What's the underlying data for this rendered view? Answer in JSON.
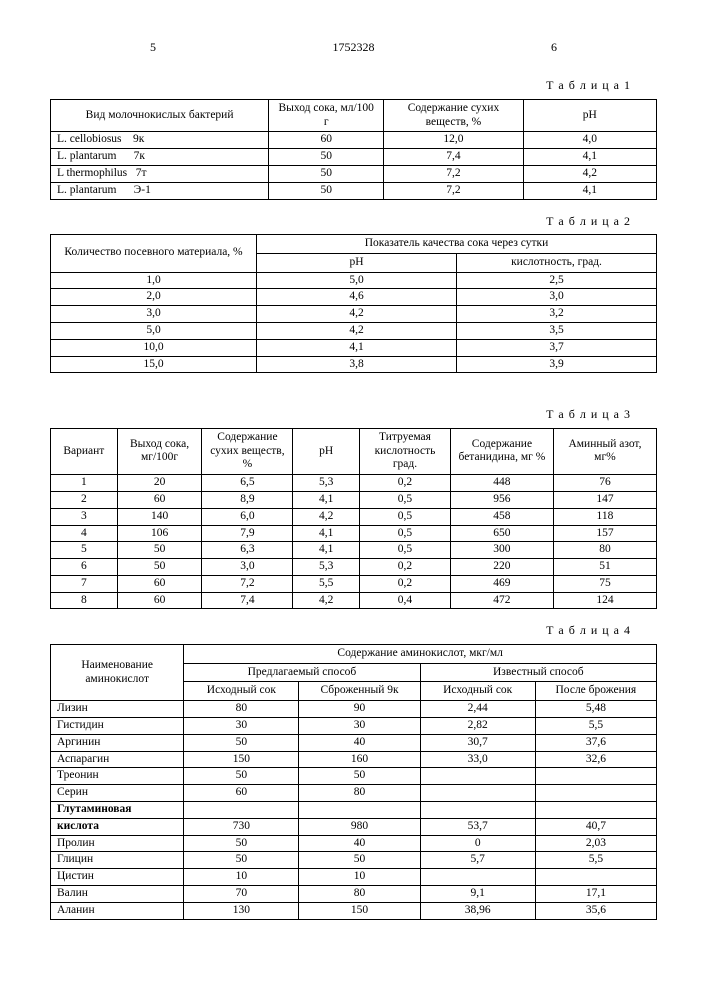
{
  "top": {
    "l": "5",
    "c": "1752328",
    "r": "6"
  },
  "t1": {
    "caption": "Т а б л и ц а 1",
    "headers": [
      "Вид молочнокислых бактерий",
      "Выход сока, мл/100 г",
      "Содержание сухих веществ, %",
      "pH"
    ],
    "rows": [
      [
        "L. cellobiosus    9к",
        "60",
        "12,0",
        "4,0"
      ],
      [
        "L. plantarum      7к",
        "50",
        "7,4",
        "4,1"
      ],
      [
        "L thermophilus   7т",
        "50",
        "7,2",
        "4,2"
      ],
      [
        "L. plantarum      Э-1",
        "50",
        "7,2",
        "4,1"
      ]
    ]
  },
  "t2": {
    "caption": "Т а б л и ц а 2",
    "h1": "Количество посевного мате­риала, %",
    "h2": "Показатель качества сока через сутки",
    "h2a": "pH",
    "h2b": "кислотность, град.",
    "rows": [
      [
        "1,0",
        "5,0",
        "2,5"
      ],
      [
        "2,0",
        "4,6",
        "3,0"
      ],
      [
        "3,0",
        "4,2",
        "3,2"
      ],
      [
        "5,0",
        "4,2",
        "3,5"
      ],
      [
        "10,0",
        "4,1",
        "3,7"
      ],
      [
        "15,0",
        "3,8",
        "3,9"
      ]
    ]
  },
  "t3": {
    "caption": "Т а б л и ц а 3",
    "headers": [
      "Вариант",
      "Выход со­ка, мг/100г",
      "Содержа­ние сухих веществ, %",
      "pH",
      "Титруемая кислот­ность град.",
      "Содержа­ние бетани­дина, мг %",
      "Аминный азот, мг%"
    ],
    "rows": [
      [
        "1",
        "20",
        "6,5",
        "5,3",
        "0,2",
        "448",
        "76"
      ],
      [
        "2",
        "60",
        "8,9",
        "4,1",
        "0,5",
        "956",
        "147"
      ],
      [
        "3",
        "140",
        "6,0",
        "4,2",
        "0,5",
        "458",
        "118"
      ],
      [
        "4",
        "106",
        "7,9",
        "4,1",
        "0,5",
        "650",
        "157"
      ],
      [
        "5",
        "50",
        "6,3",
        "4,1",
        "0,5",
        "300",
        "80"
      ],
      [
        "6",
        "50",
        "3,0",
        "5,3",
        "0,2",
        "220",
        "51"
      ],
      [
        "7",
        "60",
        "7,2",
        "5,5",
        "0,2",
        "469",
        "75"
      ],
      [
        "8",
        "60",
        "7,4",
        "4,2",
        "0,4",
        "472",
        "124"
      ]
    ]
  },
  "t4": {
    "caption": "Т а б л и ц а 4",
    "h1": "Наименование аминокислот",
    "h2": "Содержание аминокислот, мкг/мл",
    "h3a": "Предлагаемый способ",
    "h3b": "Известный способ",
    "h4": [
      "Исходный сок",
      "Сброженный 9к",
      "Исходный сок",
      "После брожения"
    ],
    "rows": [
      [
        "Лизин",
        "80",
        "90",
        "2,44",
        "5,48"
      ],
      [
        "Гистидин",
        "30",
        "30",
        "2,82",
        "5,5"
      ],
      [
        "Аргинин",
        "50",
        "40",
        "30,7",
        "37,6"
      ],
      [
        "Аспарагин",
        "150",
        "160",
        "33,0",
        "32,6"
      ],
      [
        "Треонин",
        "50",
        "50",
        "",
        ""
      ],
      [
        "Серин",
        "60",
        "80",
        "",
        ""
      ],
      [
        "Глутаминовая",
        "",
        "",
        "",
        ""
      ],
      [
        "кислота",
        "730",
        "980",
        "53,7",
        "40,7"
      ],
      [
        "Пролин",
        "50",
        "40",
        "0",
        "2,03"
      ],
      [
        "Глицин",
        "50",
        "50",
        "5,7",
        "5,5"
      ],
      [
        "Цистин",
        "10",
        "10",
        "",
        ""
      ],
      [
        "Валин",
        "70",
        "80",
        "9,1",
        "17,1"
      ],
      [
        "Аланин",
        "130",
        "150",
        "38,96",
        "35,6"
      ]
    ]
  }
}
